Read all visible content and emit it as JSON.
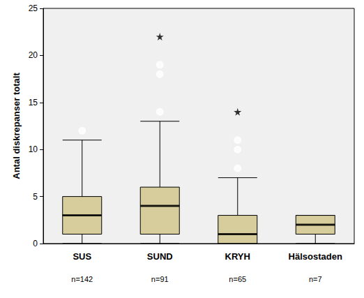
{
  "chart_data": {
    "type": "boxplot",
    "ylabel": "Antal diskrepanser totalt",
    "categories": [
      "SUS",
      "SUND",
      "KRYH",
      "Hälsostaden"
    ],
    "annotations": [
      "n=142",
      "n=91",
      "n=65",
      "n=7"
    ],
    "series": [
      {
        "type": "boxplot",
        "color": "#d6cc9c",
        "values": [
          [
            0,
            1,
            3,
            5,
            11
          ],
          [
            0,
            1,
            4,
            6,
            13
          ],
          [
            0,
            0,
            1,
            3,
            7
          ],
          [
            0,
            1,
            2,
            3,
            3
          ]
        ]
      },
      {
        "type": "scatter",
        "marker": "circle",
        "color": "#000000",
        "values": [
          [
            12
          ],
          [
            14,
            18,
            19
          ],
          [
            8,
            10,
            11
          ],
          []
        ]
      },
      {
        "type": "scatter",
        "marker": "star",
        "color": "#000000",
        "values": [
          [],
          [
            22
          ],
          [
            14
          ],
          []
        ]
      }
    ],
    "ylim": [
      0,
      25
    ],
    "yticks": [
      0,
      5,
      10,
      15,
      20,
      25
    ],
    "grid": false
  }
}
